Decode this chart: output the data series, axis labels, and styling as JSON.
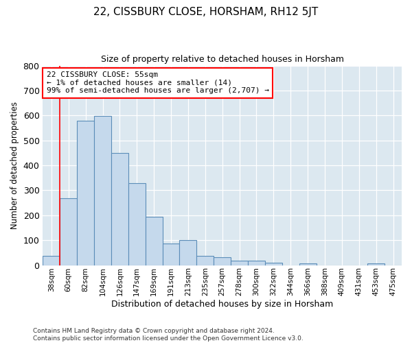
{
  "title": "22, CISSBURY CLOSE, HORSHAM, RH12 5JT",
  "subtitle": "Size of property relative to detached houses in Horsham",
  "xlabel": "Distribution of detached houses by size in Horsham",
  "ylabel": "Number of detached properties",
  "footer_line1": "Contains HM Land Registry data © Crown copyright and database right 2024.",
  "footer_line2": "Contains public sector information licensed under the Open Government Licence v3.0.",
  "bar_labels": [
    "38sqm",
    "60sqm",
    "82sqm",
    "104sqm",
    "126sqm",
    "147sqm",
    "169sqm",
    "191sqm",
    "213sqm",
    "235sqm",
    "257sqm",
    "278sqm",
    "300sqm",
    "322sqm",
    "344sqm",
    "366sqm",
    "388sqm",
    "409sqm",
    "431sqm",
    "453sqm",
    "475sqm"
  ],
  "bar_values": [
    38,
    267,
    580,
    597,
    450,
    330,
    195,
    87,
    100,
    37,
    32,
    17,
    17,
    11,
    0,
    7,
    0,
    0,
    0,
    7,
    0
  ],
  "bar_color": "#c5d9ec",
  "bar_edge_color": "#5b8db8",
  "ylim": [
    0,
    800
  ],
  "yticks": [
    0,
    100,
    200,
    300,
    400,
    500,
    600,
    700,
    800
  ],
  "annotation_line1": "22 CISSBURY CLOSE: 55sqm",
  "annotation_line2": "← 1% of detached houses are smaller (14)",
  "annotation_line3": "99% of semi-detached houses are larger (2,707) →",
  "red_line_x": 0.5,
  "background_color": "#dce8f0"
}
